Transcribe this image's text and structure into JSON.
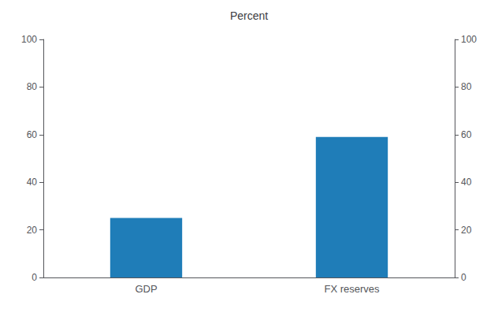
{
  "chart_data": {
    "type": "bar",
    "ylabel": "Percent",
    "categories": [
      "GDP",
      "FX reserves"
    ],
    "values": [
      25,
      59
    ],
    "color": "#1f7db8",
    "ylim": [
      0,
      100
    ],
    "yticks": [
      0,
      20,
      40,
      60,
      80,
      100
    ],
    "y2lim": [
      0,
      100
    ],
    "y2ticks": [
      0,
      20,
      40,
      60,
      80,
      100
    ],
    "grid": false
  }
}
